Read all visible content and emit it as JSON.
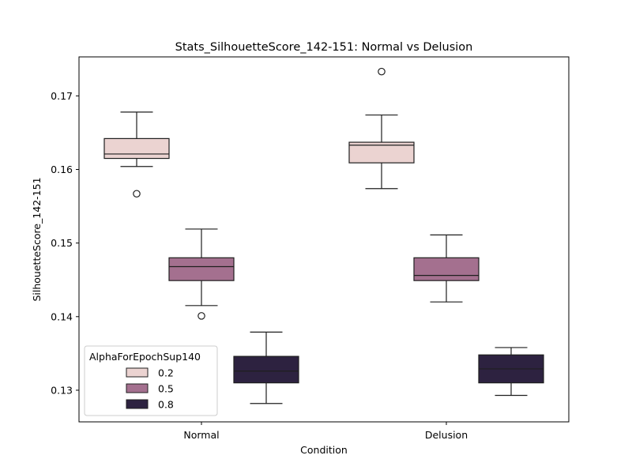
{
  "chart_data": {
    "type": "box",
    "title": "Stats_SilhouetteScore_142-151: Normal vs Delusion",
    "xlabel": "Condition",
    "ylabel": "SilhouetteScore_142-151",
    "categories": [
      "Normal",
      "Delusion"
    ],
    "ylim": [
      0.1257,
      0.1753
    ],
    "yticks": [
      0.13,
      0.14,
      0.15,
      0.16,
      0.17
    ],
    "ytick_labels": [
      "0.13",
      "0.14",
      "0.15",
      "0.16",
      "0.17"
    ],
    "grid": false,
    "legend": {
      "title": "AlphaForEpochSup140",
      "location": "lower-left"
    },
    "series": [
      {
        "name": "0.2",
        "color": "#ebd3d1",
        "boxes": [
          {
            "whisker_low": 0.1604,
            "q1": 0.1615,
            "median": 0.1621,
            "q3": 0.1642,
            "whisker_high": 0.1678,
            "outliers": [
              0.1567
            ]
          },
          {
            "whisker_low": 0.1574,
            "q1": 0.1609,
            "median": 0.1633,
            "q3": 0.1637,
            "whisker_high": 0.1674,
            "outliers": [
              0.1733
            ]
          }
        ]
      },
      {
        "name": "0.5",
        "color": "#a4708f",
        "boxes": [
          {
            "whisker_low": 0.1415,
            "q1": 0.1449,
            "median": 0.1468,
            "q3": 0.148,
            "whisker_high": 0.1519,
            "outliers": [
              0.1401
            ]
          },
          {
            "whisker_low": 0.142,
            "q1": 0.1449,
            "median": 0.1456,
            "q3": 0.148,
            "whisker_high": 0.1511,
            "outliers": []
          }
        ]
      },
      {
        "name": "0.8",
        "color": "#2d2240",
        "boxes": [
          {
            "whisker_low": 0.1282,
            "q1": 0.131,
            "median": 0.1326,
            "q3": 0.1346,
            "whisker_high": 0.1379,
            "outliers": []
          },
          {
            "whisker_low": 0.1293,
            "q1": 0.131,
            "median": 0.1329,
            "q3": 0.1348,
            "whisker_high": 0.1358,
            "outliers": []
          }
        ]
      }
    ]
  }
}
